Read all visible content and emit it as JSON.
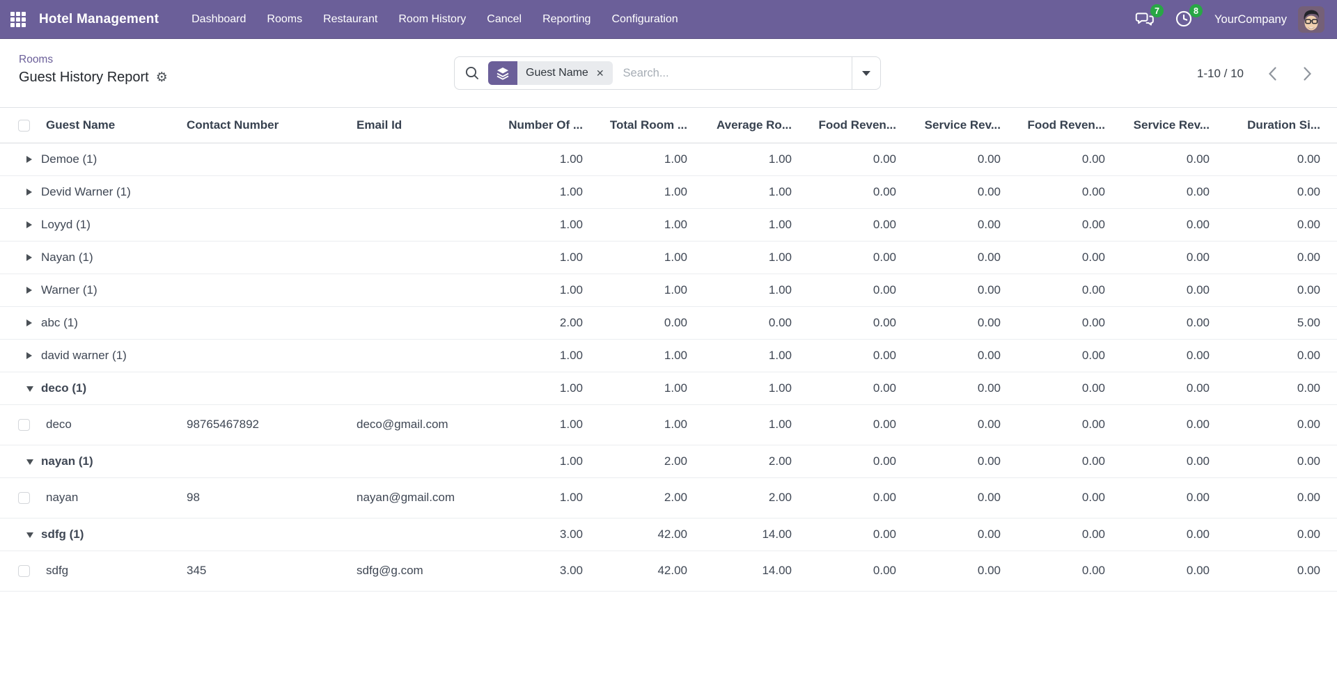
{
  "navbar": {
    "app_title": "Hotel Management",
    "menus": [
      "Dashboard",
      "Rooms",
      "Restaurant",
      "Room History",
      "Cancel",
      "Reporting",
      "Configuration"
    ],
    "messages_badge": "7",
    "activities_badge": "8",
    "company_name": "YourCompany"
  },
  "colors": {
    "navbar_bg": "#6b5f99",
    "badge_green": "#28a745",
    "link_purple": "#6b5f99"
  },
  "control_panel": {
    "breadcrumb_parent": "Rooms",
    "page_title": "Guest History Report",
    "search_facet": "Guest Name",
    "search_placeholder": "Search...",
    "pager_text": "1-10 / 10"
  },
  "table": {
    "columns": [
      "Guest Name",
      "Contact Number",
      "Email Id",
      "Number Of ...",
      "Total Room ...",
      "Average Ro...",
      "Food Reven...",
      "Service Rev...",
      "Food Reven...",
      "Service Rev...",
      "Duration Si..."
    ],
    "rows": [
      {
        "type": "group",
        "expanded": false,
        "label": "Demoe (1)",
        "values": [
          "1.00",
          "1.00",
          "1.00",
          "0.00",
          "0.00",
          "0.00",
          "0.00",
          "0.00"
        ]
      },
      {
        "type": "group",
        "expanded": false,
        "label": "Devid Warner (1)",
        "values": [
          "1.00",
          "1.00",
          "1.00",
          "0.00",
          "0.00",
          "0.00",
          "0.00",
          "0.00"
        ]
      },
      {
        "type": "group",
        "expanded": false,
        "label": "Loyyd (1)",
        "values": [
          "1.00",
          "1.00",
          "1.00",
          "0.00",
          "0.00",
          "0.00",
          "0.00",
          "0.00"
        ]
      },
      {
        "type": "group",
        "expanded": false,
        "label": "Nayan (1)",
        "values": [
          "1.00",
          "1.00",
          "1.00",
          "0.00",
          "0.00",
          "0.00",
          "0.00",
          "0.00"
        ]
      },
      {
        "type": "group",
        "expanded": false,
        "label": "Warner (1)",
        "values": [
          "1.00",
          "1.00",
          "1.00",
          "0.00",
          "0.00",
          "0.00",
          "0.00",
          "0.00"
        ]
      },
      {
        "type": "group",
        "expanded": false,
        "label": "abc (1)",
        "values": [
          "2.00",
          "0.00",
          "0.00",
          "0.00",
          "0.00",
          "0.00",
          "0.00",
          "5.00"
        ]
      },
      {
        "type": "group",
        "expanded": false,
        "label": "david warner (1)",
        "values": [
          "1.00",
          "1.00",
          "1.00",
          "0.00",
          "0.00",
          "0.00",
          "0.00",
          "0.00"
        ]
      },
      {
        "type": "group",
        "expanded": true,
        "label": "deco (1)",
        "values": [
          "1.00",
          "1.00",
          "1.00",
          "0.00",
          "0.00",
          "0.00",
          "0.00",
          "0.00"
        ]
      },
      {
        "type": "record",
        "name": "deco",
        "contact": "98765467892",
        "email": "deco@gmail.com",
        "values": [
          "1.00",
          "1.00",
          "1.00",
          "0.00",
          "0.00",
          "0.00",
          "0.00",
          "0.00"
        ]
      },
      {
        "type": "group",
        "expanded": true,
        "label": "nayan (1)",
        "values": [
          "1.00",
          "2.00",
          "2.00",
          "0.00",
          "0.00",
          "0.00",
          "0.00",
          "0.00"
        ]
      },
      {
        "type": "record",
        "name": "nayan",
        "contact": "98",
        "email": "nayan@gmail.com",
        "values": [
          "1.00",
          "2.00",
          "2.00",
          "0.00",
          "0.00",
          "0.00",
          "0.00",
          "0.00"
        ]
      },
      {
        "type": "group",
        "expanded": true,
        "label": "sdfg (1)",
        "values": [
          "3.00",
          "42.00",
          "14.00",
          "0.00",
          "0.00",
          "0.00",
          "0.00",
          "0.00"
        ]
      },
      {
        "type": "record",
        "name": "sdfg",
        "contact": "345",
        "email": "sdfg@g.com",
        "values": [
          "3.00",
          "42.00",
          "14.00",
          "0.00",
          "0.00",
          "0.00",
          "0.00",
          "0.00"
        ]
      }
    ]
  }
}
